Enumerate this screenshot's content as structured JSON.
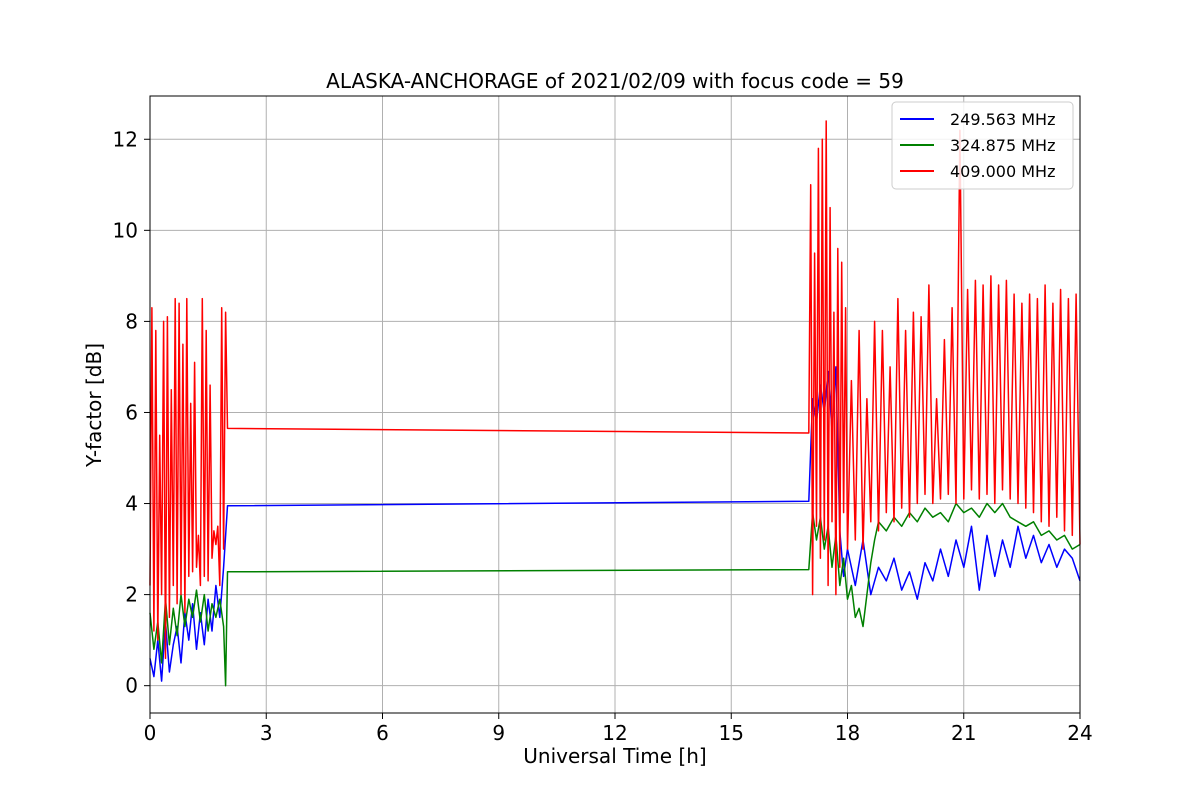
{
  "chart_data": {
    "type": "line",
    "title": "ALASKA-ANCHORAGE of 2021/02/09 with focus code = 59",
    "xlabel": "Universal Time [h]",
    "ylabel": "Y-factor [dB]",
    "xlim": [
      0,
      24
    ],
    "ylim": [
      -0.6,
      12.95
    ],
    "xticks": [
      0,
      3,
      6,
      9,
      12,
      15,
      18,
      21,
      24
    ],
    "yticks": [
      0,
      2,
      4,
      6,
      8,
      10,
      12
    ],
    "grid": true,
    "legend_position": "top-right",
    "series": [
      {
        "name": "249.563 MHz",
        "color": "#0000ff",
        "x": [
          0.0,
          0.1,
          0.2,
          0.3,
          0.4,
          0.5,
          0.6,
          0.7,
          0.8,
          0.9,
          1.0,
          1.1,
          1.2,
          1.3,
          1.4,
          1.5,
          1.6,
          1.7,
          1.8,
          1.9,
          2.0,
          17.0,
          17.1,
          17.2,
          17.3,
          17.4,
          17.5,
          17.6,
          17.7,
          17.8,
          17.9,
          18.0,
          18.2,
          18.4,
          18.6,
          18.8,
          19.0,
          19.2,
          19.4,
          19.6,
          19.8,
          20.0,
          20.2,
          20.4,
          20.6,
          20.8,
          21.0,
          21.2,
          21.4,
          21.6,
          21.8,
          22.0,
          22.2,
          22.4,
          22.6,
          22.8,
          23.0,
          23.2,
          23.4,
          23.6,
          23.8,
          24.0
        ],
        "y": [
          0.6,
          0.2,
          1.0,
          0.1,
          1.4,
          0.3,
          0.9,
          1.3,
          0.5,
          1.6,
          1.0,
          1.8,
          0.8,
          1.6,
          0.9,
          1.9,
          1.2,
          2.2,
          1.5,
          2.6,
          3.95,
          4.05,
          6.3,
          5.8,
          6.6,
          6.0,
          6.9,
          5.6,
          7.0,
          3.4,
          2.4,
          3.0,
          2.2,
          3.2,
          2.0,
          2.6,
          2.3,
          2.8,
          2.1,
          2.5,
          1.9,
          2.7,
          2.3,
          3.0,
          2.4,
          3.2,
          2.6,
          3.5,
          2.1,
          3.3,
          2.4,
          3.2,
          2.6,
          3.5,
          2.8,
          3.3,
          2.7,
          3.1,
          2.6,
          3.0,
          2.8,
          2.3
        ]
      },
      {
        "name": "324.875 MHz",
        "color": "#008000",
        "x": [
          0.0,
          0.1,
          0.2,
          0.3,
          0.4,
          0.5,
          0.6,
          0.7,
          0.8,
          0.9,
          1.0,
          1.1,
          1.2,
          1.3,
          1.4,
          1.5,
          1.6,
          1.7,
          1.8,
          1.9,
          1.95,
          2.0,
          17.0,
          17.1,
          17.2,
          17.3,
          17.4,
          17.5,
          17.6,
          17.7,
          17.8,
          17.9,
          18.0,
          18.1,
          18.2,
          18.3,
          18.4,
          18.5,
          18.6,
          18.7,
          18.8,
          19.0,
          19.2,
          19.4,
          19.6,
          19.8,
          20.0,
          20.2,
          20.4,
          20.6,
          20.8,
          21.0,
          21.2,
          21.4,
          21.6,
          21.8,
          22.0,
          22.2,
          22.4,
          22.6,
          22.8,
          23.0,
          23.2,
          23.4,
          23.6,
          23.8,
          24.0
        ],
        "y": [
          1.6,
          0.8,
          1.4,
          0.5,
          1.9,
          0.9,
          1.7,
          1.1,
          2.0,
          1.3,
          1.9,
          1.5,
          2.1,
          1.4,
          2.0,
          1.2,
          1.8,
          1.5,
          1.9,
          1.3,
          0.0,
          2.5,
          2.55,
          3.8,
          3.2,
          3.7,
          3.0,
          3.5,
          2.6,
          3.3,
          2.2,
          2.8,
          1.9,
          2.2,
          1.5,
          1.7,
          1.3,
          2.0,
          2.7,
          3.2,
          3.6,
          3.4,
          3.7,
          3.5,
          3.8,
          3.6,
          3.9,
          3.7,
          3.8,
          3.6,
          4.0,
          3.8,
          3.9,
          3.7,
          4.0,
          3.8,
          4.0,
          3.7,
          3.6,
          3.5,
          3.6,
          3.3,
          3.4,
          3.2,
          3.3,
          3.0,
          3.1
        ]
      },
      {
        "name": "409.000 MHz",
        "color": "#ff0000",
        "x": [
          0.0,
          0.05,
          0.1,
          0.15,
          0.2,
          0.25,
          0.3,
          0.35,
          0.4,
          0.45,
          0.5,
          0.55,
          0.6,
          0.65,
          0.7,
          0.75,
          0.8,
          0.85,
          0.9,
          0.95,
          1.0,
          1.05,
          1.1,
          1.15,
          1.2,
          1.25,
          1.3,
          1.35,
          1.4,
          1.45,
          1.5,
          1.55,
          1.6,
          1.65,
          1.7,
          1.75,
          1.8,
          1.85,
          1.9,
          1.95,
          2.0,
          17.0,
          17.05,
          17.1,
          17.15,
          17.2,
          17.25,
          17.3,
          17.35,
          17.4,
          17.45,
          17.5,
          17.55,
          17.6,
          17.65,
          17.7,
          17.75,
          17.8,
          17.85,
          17.9,
          17.95,
          18.0,
          18.1,
          18.2,
          18.3,
          18.4,
          18.5,
          18.6,
          18.7,
          18.8,
          18.9,
          19.0,
          19.1,
          19.2,
          19.3,
          19.4,
          19.5,
          19.6,
          19.7,
          19.8,
          19.9,
          20.0,
          20.1,
          20.2,
          20.3,
          20.4,
          20.5,
          20.6,
          20.7,
          20.8,
          20.9,
          21.0,
          21.1,
          21.2,
          21.3,
          21.4,
          21.5,
          21.6,
          21.7,
          21.8,
          21.9,
          22.0,
          22.1,
          22.2,
          22.3,
          22.4,
          22.5,
          22.6,
          22.7,
          22.8,
          22.9,
          23.0,
          23.1,
          23.2,
          23.3,
          23.4,
          23.5,
          23.6,
          23.7,
          23.8,
          23.9,
          24.0
        ],
        "y": [
          2.2,
          8.3,
          1.2,
          7.8,
          1.0,
          5.5,
          2.0,
          8.0,
          0.6,
          8.1,
          1.5,
          6.5,
          2.2,
          8.5,
          1.8,
          8.4,
          2.0,
          7.5,
          1.6,
          8.5,
          2.4,
          6.2,
          2.5,
          7.1,
          2.6,
          3.3,
          2.2,
          8.5,
          2.4,
          7.8,
          2.3,
          6.6,
          2.8,
          3.4,
          3.1,
          3.5,
          2.2,
          8.3,
          3.0,
          8.2,
          5.65,
          5.55,
          11.0,
          2.0,
          9.5,
          3.5,
          11.8,
          2.8,
          12.0,
          3.2,
          12.4,
          2.2,
          10.5,
          3.6,
          8.2,
          2.0,
          9.6,
          2.6,
          9.3,
          3.8,
          8.3,
          3.0,
          6.7,
          3.2,
          7.8,
          3.0,
          6.3,
          3.6,
          8.0,
          3.4,
          7.8,
          3.8,
          7.0,
          3.6,
          8.5,
          3.9,
          7.8,
          3.7,
          8.2,
          4.0,
          8.1,
          4.2,
          8.8,
          4.0,
          6.3,
          4.1,
          7.6,
          4.2,
          8.3,
          4.0,
          12.2,
          4.1,
          8.7,
          4.3,
          8.9,
          4.1,
          8.8,
          4.2,
          9.0,
          4.0,
          8.8,
          4.3,
          8.9,
          4.1,
          8.6,
          4.0,
          8.4,
          3.9,
          8.6,
          3.8,
          8.5,
          3.6,
          8.8,
          3.5,
          8.4,
          3.7,
          8.7,
          3.4,
          8.5,
          3.3,
          8.6,
          3.1
        ]
      }
    ]
  }
}
